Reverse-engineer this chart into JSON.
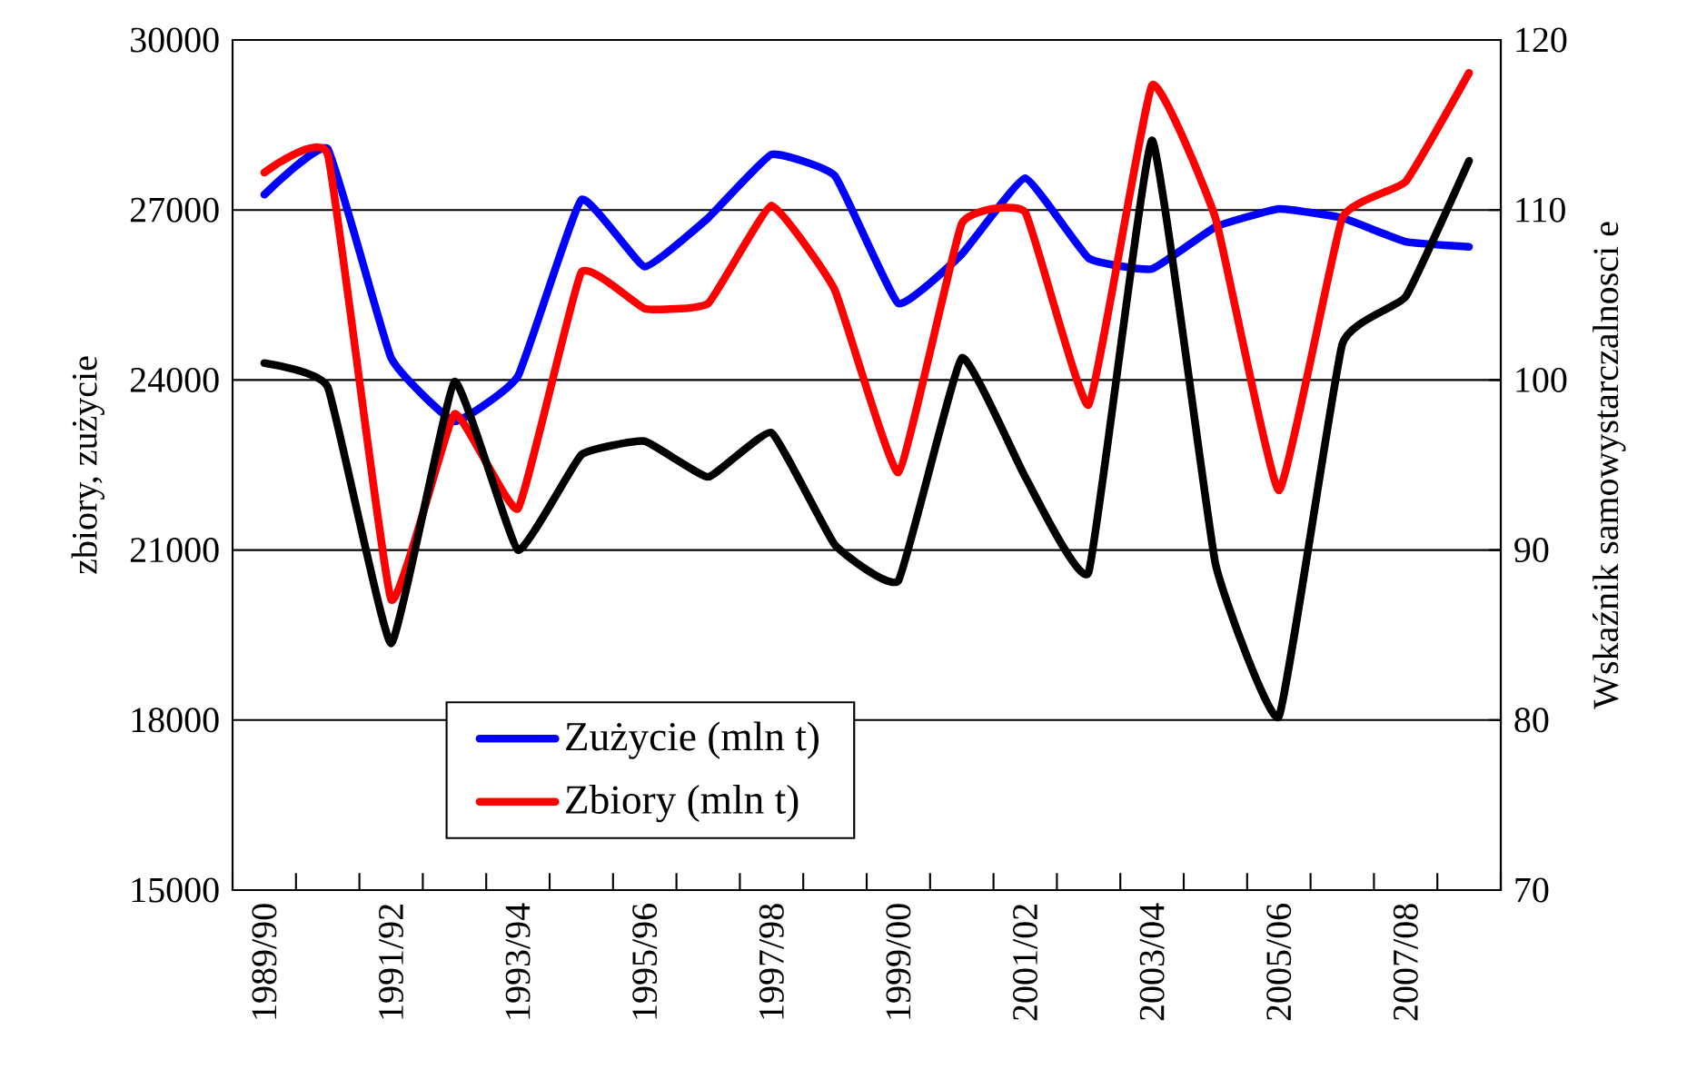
{
  "chart_data": {
    "type": "line",
    "ylabel": "zbiory, zużycie",
    "y2label": "Wskaźnik samowystarczalnosci e",
    "categories": [
      "1989/90",
      null,
      "1991/92",
      null,
      "1993/94",
      null,
      "1995/96",
      null,
      "1997/98",
      null,
      "1999/00",
      null,
      "2001/02",
      null,
      "2003/04",
      null,
      "2005/06",
      null,
      "2007/08",
      null
    ],
    "series": [
      {
        "name": "Zużycie (mln t)",
        "color": "#0000ff",
        "values": [
          27270,
          28080,
          24390,
          23270,
          24070,
          27180,
          26000,
          26860,
          27980,
          27600,
          25350,
          26220,
          27560,
          26150,
          25960,
          26700,
          27020,
          26860,
          26440,
          26350
        ]
      },
      {
        "name": "Zbiory (mln t)",
        "color": "#ff0000",
        "values": [
          27660,
          27980,
          20130,
          23400,
          21730,
          25900,
          25260,
          25350,
          27080,
          25580,
          22370,
          26760,
          26960,
          23560,
          29200,
          26860,
          22050,
          26860,
          27500,
          29420
        ]
      },
      {
        "color": "#000000",
        "axis": "y2",
        "values": [
          101.0,
          99.6,
          84.5,
          99.9,
          90.0,
          95.6,
          96.4,
          94.3,
          96.9,
          90.3,
          88.2,
          101.3,
          94.3,
          88.7,
          114.1,
          89.2,
          80.2,
          102.1,
          104.9,
          112.9
        ]
      }
    ],
    "ylim": [
      15000,
      30000
    ],
    "yticks": [
      15000,
      18000,
      21000,
      24000,
      27000,
      30000
    ],
    "y2lim": [
      70,
      120
    ],
    "y2ticks": [
      70,
      80,
      90,
      100,
      110,
      120
    ],
    "grid": "y",
    "legend": "bottom",
    "marker": "none",
    "line_style": "solid"
  }
}
